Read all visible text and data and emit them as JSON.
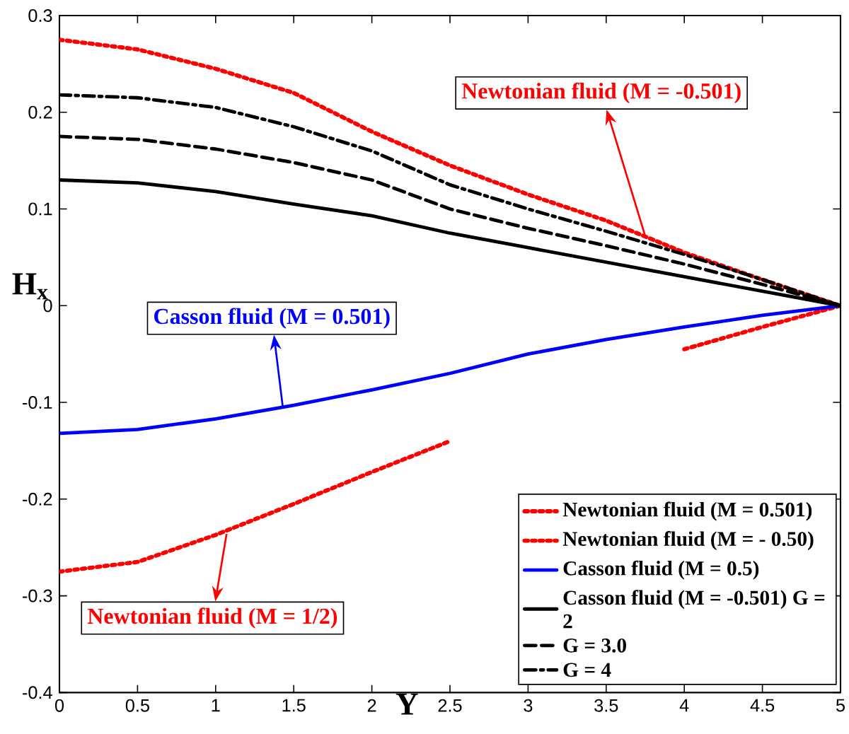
{
  "chart_data": {
    "type": "line",
    "xlabel": "Y",
    "ylabel": "H$_{x}$",
    "x": [
      0,
      0.5,
      1,
      1.5,
      2,
      2.5,
      3,
      3.5,
      4,
      4.5,
      5
    ],
    "series": [
      {
        "name": "Newtonian fluid (M = 0.501)",
        "color": "#ff0000",
        "line_style": "dotted",
        "values": [
          -0.275,
          -0.265,
          -0.237,
          -0.205,
          -0.172,
          -0.14,
          null,
          null,
          -0.045,
          -0.022,
          0
        ]
      },
      {
        "name": "Newtonian fluid (M = - 0.50)",
        "color": "#ff0000",
        "line_style": "dotted",
        "values": [
          0.275,
          0.265,
          0.245,
          0.22,
          0.18,
          0.145,
          0.115,
          0.088,
          0.055,
          0.027,
          0
        ]
      },
      {
        "name": "Casson fluid (M = 0.5)",
        "color": "#0000ff",
        "line_style": "solid",
        "values": [
          -0.132,
          -0.128,
          -0.117,
          -0.103,
          -0.087,
          -0.07,
          -0.05,
          -0.035,
          -0.022,
          -0.01,
          0
        ]
      },
      {
        "name": "Casson fluid (M = -0.501) G = 2",
        "color": "#000000",
        "line_style": "solid",
        "values": [
          0.13,
          0.127,
          0.118,
          0.105,
          0.093,
          0.075,
          0.06,
          0.045,
          0.03,
          0.015,
          0
        ]
      },
      {
        "name": "G = 3.0",
        "color": "#000000",
        "line_style": "dashed",
        "values": [
          0.175,
          0.172,
          0.162,
          0.148,
          0.13,
          0.1,
          0.08,
          0.062,
          0.043,
          0.022,
          0
        ]
      },
      {
        "name": "G = 4",
        "color": "#000000",
        "line_style": "dashdot",
        "values": [
          0.218,
          0.215,
          0.205,
          0.185,
          0.16,
          0.125,
          0.1,
          0.077,
          0.053,
          0.027,
          0
        ]
      }
    ],
    "annotations": [
      {
        "text": "Newtonian fluid (M = -0.501)",
        "x": 3.75,
        "y": 0.072
      },
      {
        "text": "Casson fluid (M = 0.501)",
        "x": 1.43,
        "y": -0.105
      },
      {
        "text": "Newtonian fluid (M = 1/2)",
        "x": 1.07,
        "y": -0.236
      }
    ],
    "xlim": [
      0,
      5
    ],
    "ylim": [
      -0.4,
      0.3
    ],
    "xticks": [
      0,
      0.5,
      1,
      1.5,
      2,
      2.5,
      3,
      3.5,
      4,
      4.5,
      5
    ],
    "yticks": [
      -0.4,
      -0.3,
      -0.2,
      -0.1,
      0,
      0.1,
      0.2,
      0.3
    ],
    "grid": false,
    "legend": "bottom right",
    "marker": "none"
  }
}
